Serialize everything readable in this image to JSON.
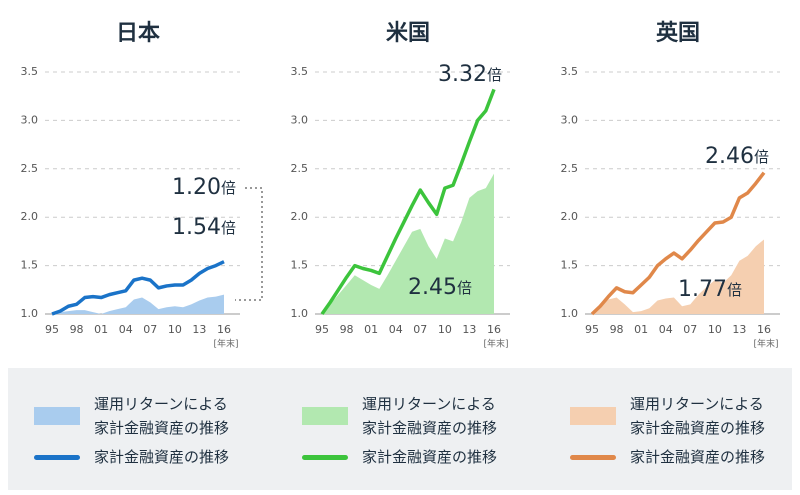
{
  "chart_data": [
    {
      "type": "line",
      "title": "日本",
      "categories": [
        "95",
        null,
        null,
        "98",
        null,
        null,
        "01",
        null,
        null,
        "04",
        null,
        null,
        "07",
        null,
        null,
        "10",
        null,
        null,
        "13",
        null,
        null,
        "16"
      ],
      "xlabel": "[年末]",
      "ylim": [
        1.0,
        3.5
      ],
      "yticks": [
        {
          "value": 1.0,
          "label": "1.0"
        },
        1.5,
        {
          "value": 2.0,
          "label": "2.0"
        },
        2.5,
        {
          "value": 3.0,
          "label": "3.0"
        },
        3.5
      ],
      "grid": true,
      "series": [
        {
          "name": "運用リターンによる家計金融資産の推移",
          "kind": "area",
          "color": "#a9ccee",
          "values": [
            1.0,
            1.02,
            1.03,
            1.04,
            1.04,
            1.02,
            1.0,
            1.03,
            1.05,
            1.07,
            1.15,
            1.17,
            1.12,
            1.05,
            1.07,
            1.08,
            1.07,
            1.1,
            1.14,
            1.17,
            1.18,
            1.2
          ]
        },
        {
          "name": "家計金融資産の推移",
          "kind": "line",
          "color": "#1a73c8",
          "values": [
            1.0,
            1.03,
            1.08,
            1.1,
            1.17,
            1.18,
            1.17,
            1.2,
            1.22,
            1.24,
            1.35,
            1.37,
            1.35,
            1.27,
            1.29,
            1.3,
            1.3,
            1.35,
            1.42,
            1.47,
            1.5,
            1.54
          ]
        }
      ],
      "annotations": [
        {
          "text": "1.20",
          "suffix": "倍"
        },
        {
          "text": "1.54",
          "suffix": "倍"
        }
      ]
    },
    {
      "type": "line",
      "title": "米国",
      "categories": [
        "95",
        null,
        null,
        "98",
        null,
        null,
        "01",
        null,
        null,
        "04",
        null,
        null,
        "07",
        null,
        null,
        "10",
        null,
        null,
        "13",
        null,
        null,
        "16"
      ],
      "xlabel": "[年末]",
      "ylim": [
        1.0,
        3.5
      ],
      "yticks": [
        {
          "value": 1.0,
          "label": "1.0"
        },
        1.5,
        {
          "value": 2.0,
          "label": "2.0"
        },
        2.5,
        {
          "value": 3.0,
          "label": "3.0"
        },
        3.5
      ],
      "grid": true,
      "series": [
        {
          "name": "運用リターンによる家計金融資産の推移",
          "kind": "area",
          "color": "#b2e8b0",
          "values": [
            1.0,
            1.1,
            1.2,
            1.3,
            1.4,
            1.35,
            1.3,
            1.26,
            1.4,
            1.55,
            1.7,
            1.85,
            1.88,
            1.7,
            1.57,
            1.78,
            1.75,
            1.95,
            2.2,
            2.27,
            2.3,
            2.45
          ]
        },
        {
          "name": "家計金融資産の推移",
          "kind": "line",
          "color": "#3cc43c",
          "values": [
            1.0,
            1.12,
            1.25,
            1.38,
            1.5,
            1.47,
            1.45,
            1.42,
            1.6,
            1.78,
            1.95,
            2.12,
            2.28,
            2.15,
            2.03,
            2.3,
            2.33,
            2.55,
            2.78,
            3.0,
            3.1,
            3.32
          ]
        }
      ],
      "annotations": [
        {
          "text": "3.32",
          "suffix": "倍"
        },
        {
          "text": "2.45",
          "suffix": "倍"
        }
      ]
    },
    {
      "type": "line",
      "title": "英国",
      "categories": [
        "95",
        null,
        null,
        "98",
        null,
        null,
        "01",
        null,
        null,
        "04",
        null,
        null,
        "07",
        null,
        null,
        "10",
        null,
        null,
        "13",
        null,
        null,
        "16"
      ],
      "xlabel": "[年末]",
      "ylim": [
        1.0,
        3.5
      ],
      "yticks": [
        {
          "value": 1.0,
          "label": "1.0"
        },
        1.5,
        {
          "value": 2.0,
          "label": "2.0"
        },
        2.5,
        {
          "value": 3.0,
          "label": "3.0"
        },
        3.5
      ],
      "grid": true,
      "series": [
        {
          "name": "運用リターンによる家計金融資産の推移",
          "kind": "area",
          "color": "#f5cfb0",
          "values": [
            1.0,
            1.08,
            1.15,
            1.17,
            1.1,
            1.02,
            1.03,
            1.06,
            1.14,
            1.16,
            1.17,
            1.08,
            1.1,
            1.2,
            1.28,
            1.35,
            1.32,
            1.4,
            1.55,
            1.6,
            1.7,
            1.77
          ]
        },
        {
          "name": "家計金融資産の推移",
          "kind": "line",
          "color": "#e0884a",
          "values": [
            1.0,
            1.08,
            1.18,
            1.27,
            1.23,
            1.22,
            1.3,
            1.38,
            1.5,
            1.57,
            1.63,
            1.57,
            1.66,
            1.76,
            1.85,
            1.94,
            1.95,
            2.0,
            2.2,
            2.25,
            2.35,
            2.46
          ]
        }
      ],
      "annotations": [
        {
          "text": "2.46",
          "suffix": "倍"
        },
        {
          "text": "1.77",
          "suffix": "倍"
        }
      ]
    }
  ]
}
